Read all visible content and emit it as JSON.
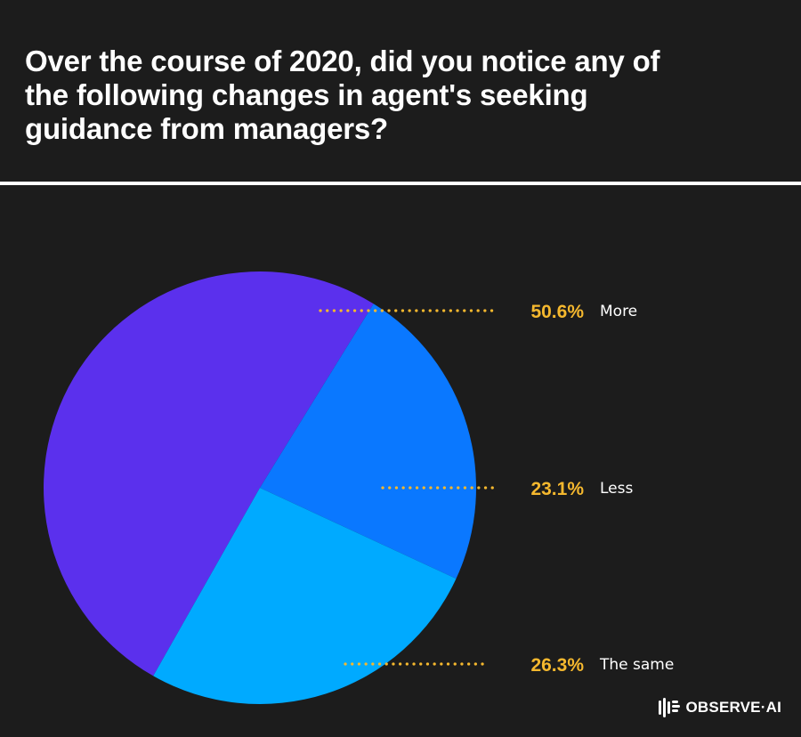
{
  "title": "Over the course of 2020, did you notice any of the following changes in agent's seeking guidance from managers?",
  "brand": {
    "name": "OBSERVE·AI",
    "icon": "observe-ai-logo-icon"
  },
  "colors": {
    "background": "#1c1c1c",
    "leader": "#f5b82e",
    "percent_text": "#f5b82e",
    "label_text": "#ffffff"
  },
  "chart_data": {
    "type": "pie",
    "title": "Over the course of 2020, did you notice any of the following changes in agent's seeking guidance from managers?",
    "slices": [
      {
        "label": "More",
        "value": 50.6,
        "display": "50.6%",
        "color": "#5b30ed"
      },
      {
        "label": "Less",
        "value": 23.1,
        "display": "23.1%",
        "color": "#0a78ff"
      },
      {
        "label": "The same",
        "value": 26.3,
        "display": "26.3%",
        "color": "#00aaff"
      }
    ],
    "legend": "right (dotted leader lines)"
  }
}
